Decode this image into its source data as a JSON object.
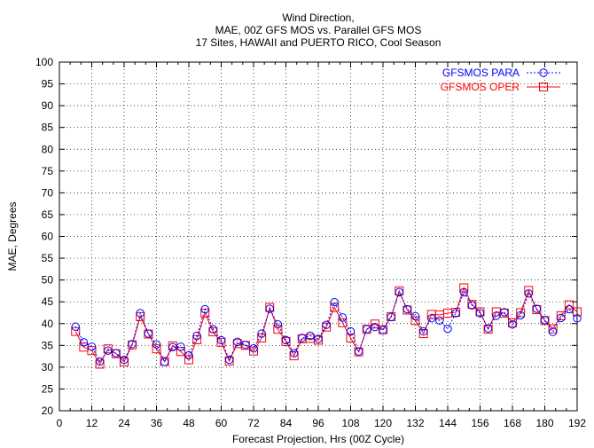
{
  "chart_data": {
    "type": "line",
    "title_lines": [
      "Wind Direction,",
      "MAE, 00Z GFS MOS vs. Parallel GFS MOS",
      "17 Sites, HAWAII and PUERTO RICO, Cool Season"
    ],
    "xlabel": "Forecast Projection, Hrs (00Z Cycle)",
    "ylabel": "MAE, Degrees",
    "xlim": [
      0,
      192
    ],
    "ylim": [
      20,
      100
    ],
    "xticks": [
      0,
      12,
      24,
      36,
      48,
      60,
      72,
      84,
      96,
      108,
      120,
      132,
      144,
      156,
      168,
      180,
      192
    ],
    "yticks": [
      20,
      25,
      30,
      35,
      40,
      45,
      50,
      55,
      60,
      65,
      70,
      75,
      80,
      85,
      90,
      95,
      100
    ],
    "grid": true,
    "legend_position": "top-right",
    "x": [
      6,
      9,
      12,
      15,
      18,
      21,
      24,
      27,
      30,
      33,
      36,
      39,
      42,
      45,
      48,
      51,
      54,
      57,
      60,
      63,
      66,
      69,
      72,
      75,
      78,
      81,
      84,
      87,
      90,
      93,
      96,
      99,
      102,
      105,
      108,
      111,
      114,
      117,
      120,
      123,
      126,
      129,
      132,
      135,
      138,
      141,
      144,
      147,
      150,
      153,
      156,
      159,
      162,
      165,
      168,
      171,
      174,
      177,
      180,
      183,
      186,
      189,
      192
    ],
    "series": [
      {
        "name": "GFSMOS PARA",
        "color": "#0000ff",
        "marker": "circle",
        "linestyle": "dotted",
        "values": [
          39.3,
          35.7,
          34.7,
          31.3,
          33.8,
          33.2,
          31.7,
          35.3,
          42.4,
          37.7,
          35.2,
          31.2,
          34.6,
          34.7,
          32.7,
          37.2,
          43.3,
          38.7,
          36.2,
          31.7,
          35.8,
          35.1,
          34.3,
          37.7,
          43.4,
          39.8,
          36.2,
          33.2,
          36.7,
          37.2,
          36.5,
          39.7,
          44.9,
          41.4,
          38.2,
          33.6,
          38.7,
          39.2,
          38.5,
          41.5,
          47.2,
          43.3,
          41.7,
          38.2,
          41.2,
          40.7,
          38.8,
          42.4,
          47.2,
          44.2,
          42.4,
          38.9,
          41.8,
          42.6,
          39.8,
          41.9,
          46.9,
          43.4,
          40.8,
          38.1,
          41.3,
          43.3,
          41.2
        ]
      },
      {
        "name": "GFSMOS OPER",
        "color": "#ff0000",
        "marker": "square",
        "linestyle": "solid",
        "values": [
          38.2,
          34.6,
          33.8,
          30.7,
          34.2,
          33.1,
          31.2,
          35.1,
          41.6,
          37.6,
          34.2,
          31.3,
          34.9,
          33.6,
          31.7,
          36.3,
          42.4,
          38.1,
          35.7,
          31.4,
          35.4,
          35.0,
          33.7,
          36.7,
          43.7,
          38.7,
          35.9,
          32.6,
          36.5,
          36.6,
          36.2,
          39.2,
          43.7,
          40.2,
          36.7,
          33.5,
          38.7,
          39.9,
          38.6,
          41.6,
          47.5,
          43.1,
          40.7,
          37.7,
          42.1,
          42.0,
          42.4,
          42.6,
          48.2,
          44.4,
          42.7,
          38.7,
          42.7,
          42.4,
          40.2,
          42.5,
          47.6,
          43.2,
          40.7,
          38.8,
          41.8,
          44.3,
          42.7
        ]
      }
    ]
  }
}
